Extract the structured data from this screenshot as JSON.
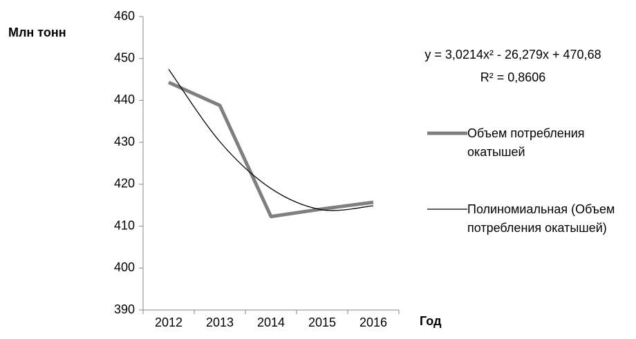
{
  "chart_data": {
    "type": "line",
    "y_label": "Млн тонн",
    "x_label": "Год",
    "annotations": [
      "y = 3,0214x² - 26,279x + 470,68",
      "R² = 0,8606"
    ],
    "categories": [
      "2012",
      "2013",
      "2014",
      "2015",
      "2016"
    ],
    "series": [
      {
        "name": "Объем потребления окатышей",
        "color": "#7f7f7f",
        "values": [
          444.3,
          438.8,
          412.3,
          414.1,
          415.7
        ]
      },
      {
        "name": "Полиномиальная (Объем потребления окатышей)",
        "color": "#000000",
        "values": [
          447.42,
          430.17,
          418.98,
          413.91,
          414.87
        ],
        "smooth": true
      }
    ],
    "ylim": [
      390,
      460
    ],
    "yticks": [
      390,
      400,
      410,
      420,
      430,
      440,
      450,
      460
    ],
    "legend": "right",
    "grid": false
  }
}
